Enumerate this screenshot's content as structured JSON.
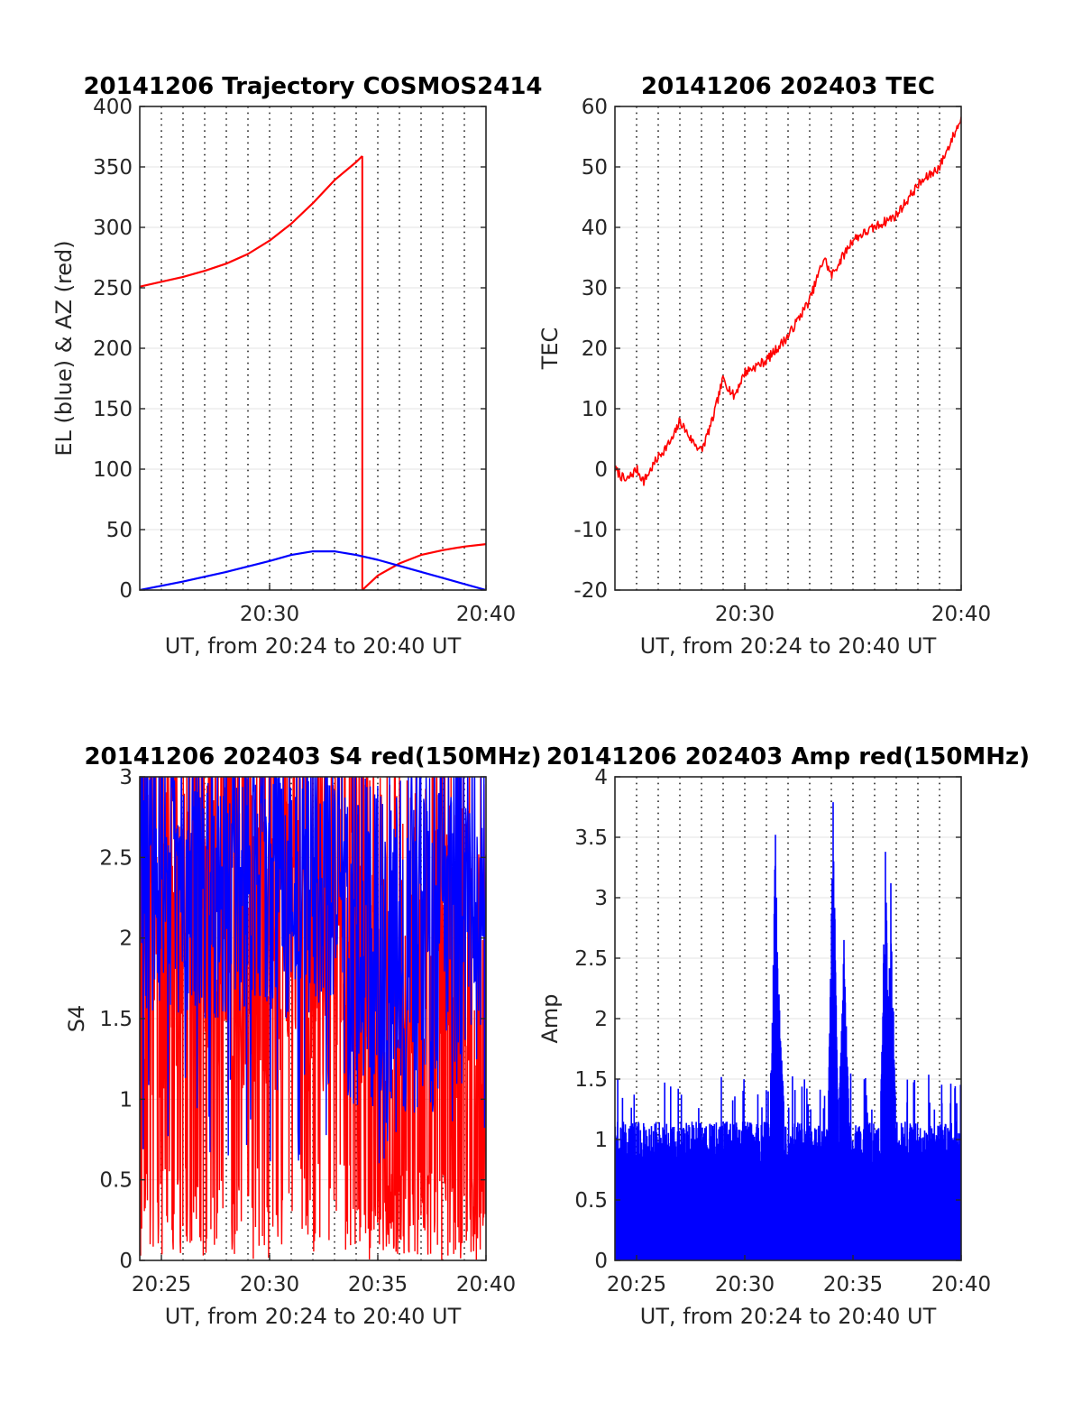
{
  "chart_data": [
    {
      "type": "line",
      "title": "20141206 Trajectory COSMOS2414",
      "xlabel": "UT, from 20:24 to 20:40 UT",
      "ylabel": "EL (blue) & AZ (red)",
      "xlim": [
        "20:24",
        "20:40"
      ],
      "ylim": [
        0,
        400
      ],
      "x_ticks": [
        "20:30",
        "20:40"
      ],
      "y_ticks": [
        0,
        50,
        100,
        150,
        200,
        250,
        300,
        350,
        400
      ],
      "grid": true,
      "series": [
        {
          "color": "#ff0000",
          "points": [
            [
              "20:24",
              251
            ],
            [
              "20:25",
              255
            ],
            [
              "20:26",
              259
            ],
            [
              "20:27",
              264
            ],
            [
              "20:28",
              270
            ],
            [
              "20:29",
              278
            ],
            [
              "20:30",
              289
            ],
            [
              "20:31",
              303
            ],
            [
              "20:32",
              320
            ],
            [
              "20:33",
              339
            ],
            [
              "20:34",
              354
            ],
            [
              "20:34:17",
              359
            ],
            [
              "20:34:17",
              0
            ],
            [
              "20:35",
              12
            ],
            [
              "20:36",
              22
            ],
            [
              "20:37",
              29
            ],
            [
              "20:38",
              33
            ],
            [
              "20:39",
              36
            ],
            [
              "20:40",
              38
            ]
          ]
        },
        {
          "color": "#0000ff",
          "points": [
            [
              "20:24",
              0
            ],
            [
              "20:26",
              7
            ],
            [
              "20:28",
              15
            ],
            [
              "20:30",
              24
            ],
            [
              "20:31",
              29
            ],
            [
              "20:32",
              32
            ],
            [
              "20:33",
              32
            ],
            [
              "20:34",
              29
            ],
            [
              "20:35",
              25
            ],
            [
              "20:36",
              20
            ],
            [
              "20:38",
              10
            ],
            [
              "20:40",
              0
            ]
          ]
        }
      ]
    },
    {
      "type": "line",
      "title": "20141206 202403 TEC",
      "xlabel": "UT, from 20:24 to 20:40 UT",
      "ylabel": "TEC",
      "xlim": [
        "20:24",
        "20:40"
      ],
      "ylim": [
        -20,
        60
      ],
      "x_ticks": [
        "20:30",
        "20:40"
      ],
      "y_ticks": [
        -20,
        -10,
        0,
        10,
        20,
        30,
        40,
        50,
        60
      ],
      "grid": true,
      "series": [
        {
          "color": "#ff0000",
          "points": [
            [
              "20:24",
              0
            ],
            [
              "20:24:30",
              -2
            ],
            [
              "20:25",
              0
            ],
            [
              "20:25:20",
              -2
            ],
            [
              "20:26",
              2
            ],
            [
              "20:26:40",
              5
            ],
            [
              "20:27",
              8
            ],
            [
              "20:27:30",
              5
            ],
            [
              "20:28",
              3
            ],
            [
              "20:28:30",
              8
            ],
            [
              "20:29",
              15
            ],
            [
              "20:29:30",
              12
            ],
            [
              "20:30",
              16
            ],
            [
              "20:31",
              18
            ],
            [
              "20:32",
              22
            ],
            [
              "20:33",
              28
            ],
            [
              "20:33:40",
              35
            ],
            [
              "20:34",
              32
            ],
            [
              "20:35",
              38
            ],
            [
              "20:36",
              40
            ],
            [
              "20:37",
              42
            ],
            [
              "20:38",
              47
            ],
            [
              "20:39",
              50
            ],
            [
              "20:40",
              58
            ]
          ]
        }
      ]
    },
    {
      "type": "line",
      "title": "20141206 202403 S4 red(150MHz)",
      "xlabel": "UT, from 20:24 to 20:40 UT",
      "ylabel": "S4",
      "xlim": [
        "20:24",
        "20:40"
      ],
      "ylim": [
        0,
        3
      ],
      "x_ticks": [
        "20:25",
        "20:30",
        "20:35",
        "20:40"
      ],
      "y_ticks": [
        0,
        0.5,
        1,
        1.5,
        2,
        2.5,
        3
      ],
      "grid": true,
      "series": [
        {
          "color": "#ff0000",
          "range": [
            0,
            3
          ]
        },
        {
          "color": "#0000ff",
          "range": [
            0.8,
            3
          ]
        }
      ]
    },
    {
      "type": "line",
      "title": "20141206 202403 Amp red(150MHz)",
      "xlabel": "UT, from 20:24 to 20:40 UT",
      "ylabel": "Amp",
      "xlim": [
        "20:24",
        "20:40"
      ],
      "ylim": [
        0,
        4
      ],
      "x_ticks": [
        "20:25",
        "20:30",
        "20:35",
        "20:40"
      ],
      "y_ticks": [
        0,
        0.5,
        1,
        1.5,
        2,
        2.5,
        3,
        3.5,
        4
      ],
      "grid": true,
      "series": [
        {
          "color": "#0000ff",
          "peaks": [
            [
              "20:31:25",
              3.52
            ],
            [
              "20:34:05",
              3.79
            ],
            [
              "20:36:30",
              3.38
            ],
            [
              "20:34:35",
              2.65
            ],
            [
              "20:36:45",
              3.12
            ],
            [
              "20:31:35",
              2.2
            ]
          ]
        }
      ]
    }
  ]
}
